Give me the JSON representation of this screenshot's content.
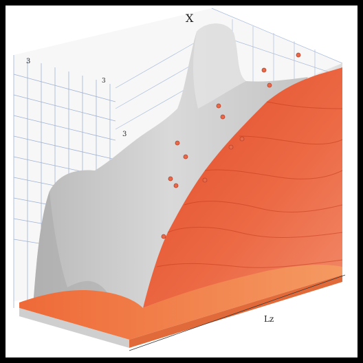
{
  "labels": {
    "top": "X",
    "left_top": "3",
    "left_mid": "3",
    "left_low": "3",
    "bottom": "Lz"
  },
  "colors": {
    "background": "#ffffff",
    "frame": "#000000",
    "grey_surface": "#cfcfcf",
    "red_surface": "#e5532f",
    "floor": "#f07a45",
    "grid": "#8aa0c8"
  }
}
